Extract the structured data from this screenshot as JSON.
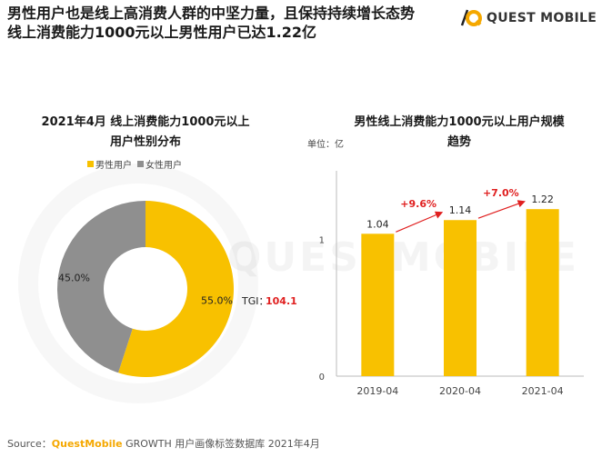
{
  "headline": {
    "line1": "男性用户也是线上高消费人群的中坚力量，且保持持续增长态势",
    "line2": "线上消费能力1000元以上男性用户已达1.22亿"
  },
  "logo": {
    "text": "QUEST MOBILE"
  },
  "watermark": {
    "text": "QUESTMOBILE"
  },
  "source": {
    "prefix": "Source：",
    "brand": "QuestMobile",
    "rest": " GROWTH 用户画像标签数据库 2021年4月"
  },
  "chart_data": [
    {
      "type": "pie",
      "style": "donut",
      "title_line1": "2021年4月 线上消费能力1000元以上",
      "title_line2": "用户性别分布",
      "legend": [
        "男性用户",
        "女性用户"
      ],
      "labels": [
        "男性用户",
        "女性用户"
      ],
      "values": [
        55.0,
        45.0
      ],
      "value_labels": [
        "55.0%",
        "45.0%"
      ],
      "colors": [
        "#f8c100",
        "#8f8f8f"
      ],
      "annotation": {
        "label": "TGI：",
        "value": "104.1"
      }
    },
    {
      "type": "bar",
      "title_line1": "男性线上消费能力1000元以上用户规模",
      "title_line2": "趋势",
      "unit": "单位：亿",
      "categories": [
        "2019-04",
        "2020-04",
        "2021-04"
      ],
      "values": [
        1.04,
        1.14,
        1.22
      ],
      "value_labels": [
        "1.04",
        "1.14",
        "1.22"
      ],
      "growth": [
        "+9.6%",
        "+7.0%"
      ],
      "yticks": [
        "0",
        "1"
      ],
      "ylim": [
        0,
        1.5
      ],
      "colors": {
        "bar": "#f8c100",
        "growth": "#e02020"
      }
    }
  ]
}
